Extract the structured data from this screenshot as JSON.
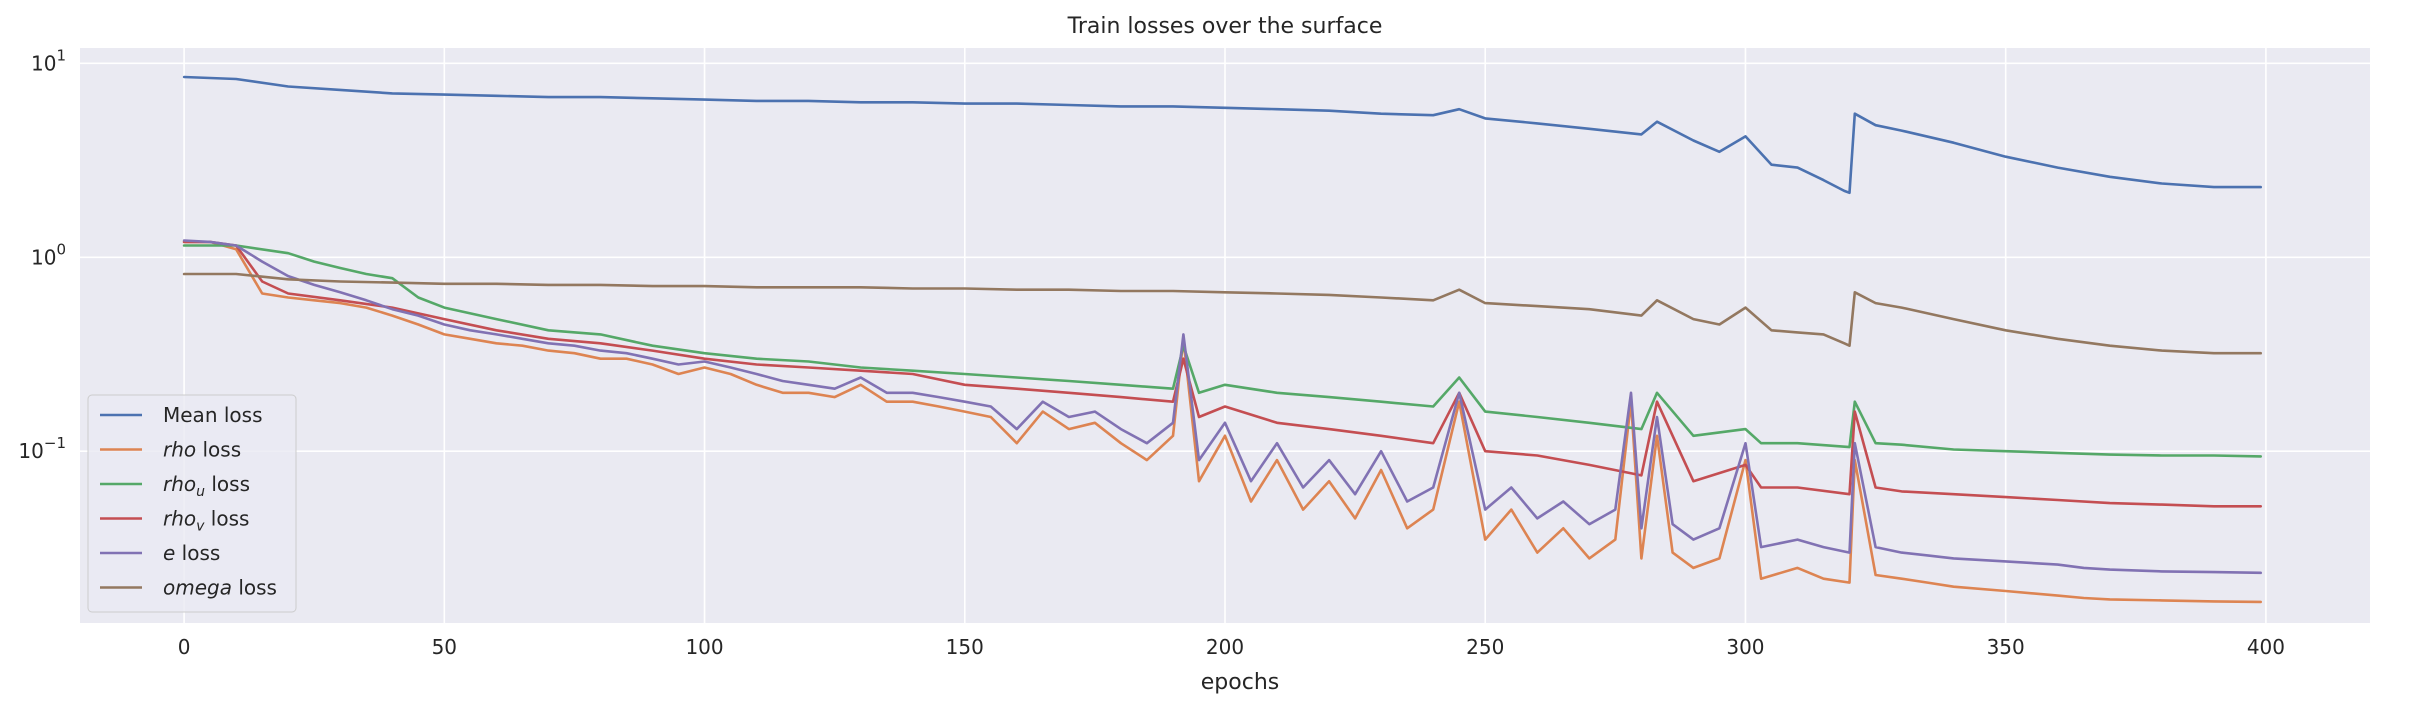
{
  "chart_data": {
    "type": "line",
    "title": "Train losses over the surface",
    "xlabel": "epochs",
    "ylabel": "",
    "xlim": [
      -20,
      420
    ],
    "ylim": [
      0.013,
      12
    ],
    "yscale": "log",
    "grid": true,
    "legend_position": "lower-left",
    "x_ticks": [
      {
        "value": 0,
        "label": "0"
      },
      {
        "value": 50,
        "label": "50"
      },
      {
        "value": 100,
        "label": "100"
      },
      {
        "value": 150,
        "label": "150"
      },
      {
        "value": 200,
        "label": "200"
      },
      {
        "value": 250,
        "label": "250"
      },
      {
        "value": 300,
        "label": "300"
      },
      {
        "value": 350,
        "label": "350"
      },
      {
        "value": 400,
        "label": "400"
      }
    ],
    "y_ticks": [
      {
        "value": 0.1,
        "base": "10",
        "exp": "−1"
      },
      {
        "value": 1,
        "base": "10",
        "exp": "0"
      },
      {
        "value": 10,
        "base": "10",
        "exp": "1"
      }
    ],
    "series": [
      {
        "name": "Mean loss",
        "name_parts": [
          {
            "t": "Mean loss",
            "s": "normal"
          }
        ],
        "color": "#4c72b0",
        "x": [
          0,
          10,
          20,
          30,
          40,
          50,
          60,
          70,
          80,
          90,
          100,
          110,
          120,
          130,
          140,
          150,
          160,
          170,
          180,
          190,
          200,
          210,
          220,
          230,
          240,
          245,
          250,
          260,
          270,
          280,
          283,
          290,
          295,
          300,
          305,
          310,
          315,
          319,
          320,
          321,
          325,
          330,
          340,
          350,
          360,
          370,
          380,
          390,
          399
        ],
        "y": [
          8.5,
          8.3,
          7.6,
          7.3,
          7.0,
          6.9,
          6.8,
          6.7,
          6.7,
          6.6,
          6.5,
          6.4,
          6.4,
          6.3,
          6.3,
          6.2,
          6.2,
          6.1,
          6.0,
          6.0,
          5.9,
          5.8,
          5.7,
          5.5,
          5.4,
          5.8,
          5.2,
          4.9,
          4.6,
          4.3,
          5.0,
          4.0,
          3.5,
          4.2,
          3.0,
          2.9,
          2.5,
          2.2,
          2.15,
          5.5,
          4.8,
          4.5,
          3.9,
          3.3,
          2.9,
          2.6,
          2.4,
          2.3,
          2.3
        ]
      },
      {
        "name": "rho loss",
        "name_parts": [
          {
            "t": "rho",
            "s": "italic"
          },
          {
            "t": " loss",
            "s": "normal"
          }
        ],
        "color": "#dd8452",
        "x": [
          0,
          5,
          10,
          15,
          20,
          25,
          30,
          35,
          40,
          45,
          50,
          55,
          60,
          65,
          70,
          75,
          80,
          85,
          90,
          95,
          100,
          105,
          110,
          115,
          120,
          125,
          130,
          135,
          140,
          145,
          150,
          155,
          160,
          165,
          170,
          175,
          180,
          185,
          190,
          192,
          195,
          200,
          205,
          210,
          215,
          220,
          225,
          230,
          235,
          240,
          245,
          250,
          255,
          260,
          265,
          270,
          275,
          278,
          280,
          283,
          286,
          290,
          295,
          300,
          303,
          310,
          315,
          320,
          321,
          325,
          330,
          335,
          340,
          350,
          360,
          365,
          370,
          380,
          390,
          399
        ],
        "y": [
          1.2,
          1.2,
          1.1,
          0.65,
          0.62,
          0.6,
          0.58,
          0.55,
          0.5,
          0.45,
          0.4,
          0.38,
          0.36,
          0.35,
          0.33,
          0.32,
          0.3,
          0.3,
          0.28,
          0.25,
          0.27,
          0.25,
          0.22,
          0.2,
          0.2,
          0.19,
          0.22,
          0.18,
          0.18,
          0.17,
          0.16,
          0.15,
          0.11,
          0.16,
          0.13,
          0.14,
          0.11,
          0.09,
          0.12,
          0.38,
          0.07,
          0.12,
          0.055,
          0.09,
          0.05,
          0.07,
          0.045,
          0.08,
          0.04,
          0.05,
          0.18,
          0.035,
          0.05,
          0.03,
          0.04,
          0.028,
          0.035,
          0.18,
          0.028,
          0.12,
          0.03,
          0.025,
          0.028,
          0.09,
          0.022,
          0.025,
          0.022,
          0.021,
          0.09,
          0.023,
          0.022,
          0.021,
          0.02,
          0.019,
          0.018,
          0.0175,
          0.0172,
          0.017,
          0.0168,
          0.0167
        ]
      },
      {
        "name": "rho_u loss",
        "name_parts": [
          {
            "t": "rho",
            "s": "italic"
          },
          {
            "t": "u",
            "s": "sub"
          },
          {
            "t": " loss",
            "s": "normal"
          }
        ],
        "color": "#55a868",
        "x": [
          0,
          10,
          20,
          25,
          30,
          35,
          40,
          45,
          50,
          60,
          70,
          80,
          90,
          100,
          110,
          120,
          130,
          140,
          150,
          160,
          170,
          180,
          190,
          192,
          195,
          200,
          210,
          220,
          230,
          240,
          245,
          250,
          260,
          270,
          280,
          283,
          290,
          300,
          303,
          310,
          320,
          321,
          325,
          330,
          340,
          350,
          360,
          370,
          380,
          390,
          399
        ],
        "y": [
          1.15,
          1.15,
          1.05,
          0.95,
          0.88,
          0.82,
          0.78,
          0.62,
          0.55,
          0.48,
          0.42,
          0.4,
          0.35,
          0.32,
          0.3,
          0.29,
          0.27,
          0.26,
          0.25,
          0.24,
          0.23,
          0.22,
          0.21,
          0.35,
          0.2,
          0.22,
          0.2,
          0.19,
          0.18,
          0.17,
          0.24,
          0.16,
          0.15,
          0.14,
          0.13,
          0.2,
          0.12,
          0.13,
          0.11,
          0.11,
          0.105,
          0.18,
          0.11,
          0.108,
          0.102,
          0.1,
          0.098,
          0.096,
          0.095,
          0.095,
          0.094
        ]
      },
      {
        "name": "rho_v loss",
        "name_parts": [
          {
            "t": "rho",
            "s": "italic"
          },
          {
            "t": "v",
            "s": "sub"
          },
          {
            "t": " loss",
            "s": "normal"
          }
        ],
        "color": "#c44e52",
        "x": [
          0,
          5,
          10,
          15,
          20,
          30,
          40,
          50,
          60,
          70,
          80,
          90,
          100,
          110,
          120,
          130,
          140,
          150,
          160,
          170,
          180,
          190,
          192,
          195,
          200,
          210,
          220,
          230,
          240,
          245,
          250,
          260,
          270,
          280,
          283,
          290,
          300,
          303,
          310,
          320,
          321,
          325,
          330,
          340,
          350,
          360,
          370,
          380,
          390,
          399
        ],
        "y": [
          1.2,
          1.2,
          1.15,
          0.75,
          0.65,
          0.6,
          0.55,
          0.48,
          0.42,
          0.38,
          0.36,
          0.33,
          0.3,
          0.28,
          0.27,
          0.26,
          0.25,
          0.22,
          0.21,
          0.2,
          0.19,
          0.18,
          0.3,
          0.15,
          0.17,
          0.14,
          0.13,
          0.12,
          0.11,
          0.2,
          0.1,
          0.095,
          0.085,
          0.075,
          0.18,
          0.07,
          0.085,
          0.065,
          0.065,
          0.06,
          0.16,
          0.065,
          0.062,
          0.06,
          0.058,
          0.056,
          0.054,
          0.053,
          0.052,
          0.052
        ]
      },
      {
        "name": "e loss",
        "name_parts": [
          {
            "t": "e",
            "s": "italic"
          },
          {
            "t": " loss",
            "s": "normal"
          }
        ],
        "color": "#8172b3",
        "x": [
          0,
          5,
          10,
          15,
          20,
          25,
          30,
          35,
          40,
          45,
          50,
          55,
          60,
          65,
          70,
          75,
          80,
          85,
          90,
          95,
          100,
          105,
          110,
          115,
          120,
          125,
          130,
          135,
          140,
          145,
          150,
          155,
          160,
          165,
          170,
          175,
          180,
          185,
          190,
          192,
          195,
          200,
          205,
          210,
          215,
          220,
          225,
          230,
          235,
          240,
          245,
          250,
          255,
          260,
          265,
          270,
          275,
          278,
          280,
          283,
          286,
          290,
          295,
          300,
          303,
          310,
          315,
          320,
          321,
          325,
          330,
          335,
          340,
          350,
          360,
          365,
          370,
          380,
          390,
          399
        ],
        "y": [
          1.22,
          1.2,
          1.15,
          0.95,
          0.8,
          0.72,
          0.66,
          0.6,
          0.54,
          0.5,
          0.45,
          0.42,
          0.4,
          0.38,
          0.36,
          0.35,
          0.33,
          0.32,
          0.3,
          0.28,
          0.29,
          0.27,
          0.25,
          0.23,
          0.22,
          0.21,
          0.24,
          0.2,
          0.2,
          0.19,
          0.18,
          0.17,
          0.13,
          0.18,
          0.15,
          0.16,
          0.13,
          0.11,
          0.14,
          0.4,
          0.09,
          0.14,
          0.07,
          0.11,
          0.065,
          0.09,
          0.06,
          0.1,
          0.055,
          0.065,
          0.2,
          0.05,
          0.065,
          0.045,
          0.055,
          0.042,
          0.05,
          0.2,
          0.04,
          0.15,
          0.042,
          0.035,
          0.04,
          0.11,
          0.032,
          0.035,
          0.032,
          0.03,
          0.11,
          0.032,
          0.03,
          0.029,
          0.028,
          0.027,
          0.026,
          0.025,
          0.0245,
          0.024,
          0.0238,
          0.0236
        ]
      },
      {
        "name": "omega loss",
        "name_parts": [
          {
            "t": "omega",
            "s": "italic"
          },
          {
            "t": " loss",
            "s": "normal"
          }
        ],
        "color": "#937860",
        "x": [
          0,
          10,
          20,
          30,
          40,
          50,
          60,
          70,
          80,
          90,
          100,
          110,
          120,
          130,
          140,
          150,
          160,
          170,
          180,
          190,
          200,
          210,
          220,
          230,
          240,
          245,
          250,
          260,
          270,
          280,
          283,
          290,
          295,
          300,
          305,
          310,
          315,
          319,
          320,
          321,
          325,
          330,
          340,
          350,
          360,
          370,
          380,
          390,
          399
        ],
        "y": [
          0.82,
          0.82,
          0.77,
          0.75,
          0.74,
          0.73,
          0.73,
          0.72,
          0.72,
          0.71,
          0.71,
          0.7,
          0.7,
          0.7,
          0.69,
          0.69,
          0.68,
          0.68,
          0.67,
          0.67,
          0.66,
          0.65,
          0.64,
          0.62,
          0.6,
          0.68,
          0.58,
          0.56,
          0.54,
          0.5,
          0.6,
          0.48,
          0.45,
          0.55,
          0.42,
          0.41,
          0.4,
          0.36,
          0.35,
          0.66,
          0.58,
          0.55,
          0.48,
          0.42,
          0.38,
          0.35,
          0.33,
          0.32,
          0.32
        ]
      }
    ]
  }
}
